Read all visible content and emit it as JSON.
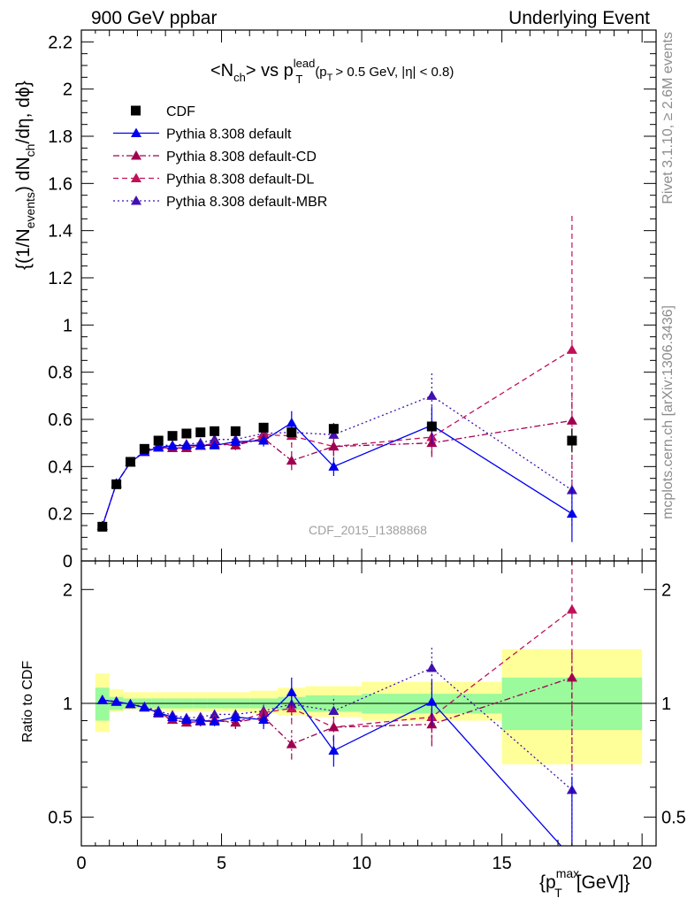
{
  "header": {
    "left": "900 GeV ppbar",
    "right": "Underlying Event"
  },
  "side_labels": {
    "rivet": "Rivet 3.1.10, ≥ 2.6M events",
    "mcplots": "mcplots.cern.ch [arXiv:1306.3436]"
  },
  "watermark": "CDF_2015_I1388868",
  "title_parts": {
    "a": "<N",
    "a_sub": "ch",
    "b": "> vs p",
    "b_sup": "lead",
    "b_sub": "T",
    "c": "(p",
    "c_sub": "T",
    "d": "> 0.5 GeV, |η| < 0.8)"
  },
  "ylabel_parts": {
    "a": "{(1/N",
    "a_sub": "events",
    "b": ") dN",
    "b_sub": "ch",
    "c": "/dη, dϕ}"
  },
  "xlabel_parts": {
    "a": "{p",
    "a_sub": "T",
    "a_sup": "max",
    "b": "[GeV]}"
  },
  "ratio_ylabel": "Ratio to CDF",
  "colors": {
    "data": "#000000",
    "default": "#0000ee",
    "cd": "#a00050",
    "dl": "#c0105a",
    "mbr": "#4010b0",
    "band_green": "#9bfa9b",
    "band_yellow": "#ffff99"
  },
  "chart_data": {
    "type": "scatter",
    "x_ticks": [
      0,
      5,
      10,
      15,
      20
    ],
    "xlim": [
      0,
      20.5
    ],
    "main": {
      "ylim": [
        0,
        2.25
      ],
      "y_ticks": [
        0,
        0.2,
        0.4,
        0.6,
        0.8,
        1,
        1.2,
        1.4,
        1.6,
        1.8,
        2,
        2.2
      ],
      "y_tick_labels": [
        "0",
        "0.2",
        "0.4",
        "0.6",
        "0.8",
        "1",
        "1.2",
        "1.4",
        "1.6",
        "1.8",
        "2",
        "2.2"
      ]
    },
    "ratio": {
      "ylim": [
        0.42,
        2.38
      ],
      "log": true,
      "y_ticks": [
        0.5,
        1,
        2
      ],
      "y_tick_labels": [
        "0.5",
        "1",
        "2"
      ]
    },
    "x": [
      0.75,
      1.25,
      1.75,
      2.25,
      2.75,
      3.25,
      3.75,
      4.25,
      4.75,
      5.5,
      6.5,
      7.5,
      9.0,
      12.5,
      17.5
    ],
    "x_edges": [
      [
        0.5,
        1.0
      ],
      [
        1.0,
        1.5
      ],
      [
        1.5,
        2.0
      ],
      [
        2.0,
        2.5
      ],
      [
        2.5,
        3.0
      ],
      [
        3.0,
        3.5
      ],
      [
        3.5,
        4.0
      ],
      [
        4.0,
        4.5
      ],
      [
        4.5,
        5.0
      ],
      [
        5.0,
        6.0
      ],
      [
        6.0,
        7.0
      ],
      [
        7.0,
        8.0
      ],
      [
        8.0,
        10.0
      ],
      [
        10.0,
        15.0
      ],
      [
        15.0,
        20.0
      ]
    ],
    "series": [
      {
        "name": "CDF",
        "key": "data",
        "style": "square",
        "y": [
          0.145,
          0.325,
          0.42,
          0.475,
          0.51,
          0.53,
          0.54,
          0.545,
          0.55,
          0.55,
          0.565,
          0.545,
          0.56,
          0.57,
          0.51
        ],
        "err": [
          0.005,
          0.005,
          0.005,
          0.005,
          0.005,
          0.005,
          0.005,
          0.005,
          0.005,
          0.005,
          0.01,
          0.01,
          0.015,
          0.02,
          0.05
        ]
      },
      {
        "name": "Pythia 8.308 default",
        "key": "default",
        "style": "solid",
        "y": [
          0.148,
          0.328,
          0.418,
          0.462,
          0.482,
          0.488,
          0.49,
          0.49,
          0.49,
          0.505,
          0.51,
          0.585,
          0.4,
          0.575,
          0.2
        ],
        "err": [
          0.005,
          0.005,
          0.008,
          0.008,
          0.01,
          0.01,
          0.01,
          0.012,
          0.015,
          0.02,
          0.025,
          0.05,
          0.04,
          0.08,
          0.12
        ],
        "ratio": [
          1.02,
          1.01,
          0.995,
          0.975,
          0.945,
          0.92,
          0.905,
          0.9,
          0.895,
          0.92,
          0.905,
          1.07,
          0.75,
          1.01,
          0.39
        ],
        "ratio_err": [
          0.01,
          0.01,
          0.015,
          0.015,
          0.02,
          0.02,
          0.02,
          0.025,
          0.025,
          0.035,
          0.05,
          0.1,
          0.07,
          0.14,
          0.25
        ]
      },
      {
        "name": "Pythia 8.308 default-CD",
        "key": "cd",
        "style": "dashdot",
        "y": [
          0.148,
          0.328,
          0.418,
          0.462,
          0.48,
          0.478,
          0.48,
          0.488,
          0.495,
          0.49,
          0.52,
          0.425,
          0.485,
          0.5,
          0.595
        ],
        "err": [
          0.005,
          0.005,
          0.008,
          0.008,
          0.01,
          0.01,
          0.01,
          0.012,
          0.015,
          0.02,
          0.025,
          0.04,
          0.04,
          0.06,
          0.12
        ],
        "ratio": [
          1.02,
          1.01,
          0.995,
          0.975,
          0.94,
          0.905,
          0.89,
          0.895,
          0.9,
          0.89,
          0.92,
          0.78,
          0.865,
          0.88,
          1.17
        ],
        "ratio_err": [
          0.01,
          0.01,
          0.015,
          0.015,
          0.02,
          0.02,
          0.02,
          0.025,
          0.025,
          0.035,
          0.05,
          0.07,
          0.07,
          0.11,
          0.22
        ]
      },
      {
        "name": "Pythia 8.308 default-DL",
        "key": "dl",
        "style": "dashed",
        "y": [
          0.148,
          0.328,
          0.418,
          0.462,
          0.482,
          0.478,
          0.478,
          0.488,
          0.498,
          0.49,
          0.535,
          0.53,
          0.485,
          0.525,
          0.895
        ],
        "err": [
          0.005,
          0.005,
          0.008,
          0.008,
          0.01,
          0.01,
          0.01,
          0.012,
          0.015,
          0.02,
          0.025,
          0.05,
          0.04,
          0.07,
          0.58
        ],
        "ratio": [
          1.02,
          1.01,
          0.995,
          0.975,
          0.945,
          0.905,
          0.89,
          0.895,
          0.905,
          0.89,
          0.945,
          0.97,
          0.865,
          0.92,
          1.77
        ],
        "ratio_err": [
          0.01,
          0.01,
          0.015,
          0.015,
          0.02,
          0.02,
          0.02,
          0.025,
          0.025,
          0.035,
          0.05,
          0.09,
          0.07,
          0.12,
          1.1
        ]
      },
      {
        "name": "Pythia 8.308 default-MBR",
        "key": "mbr",
        "style": "dotted",
        "y": [
          0.148,
          0.328,
          0.418,
          0.465,
          0.49,
          0.49,
          0.495,
          0.5,
          0.515,
          0.515,
          0.54,
          0.545,
          0.535,
          0.7,
          0.3
        ],
        "err": [
          0.005,
          0.005,
          0.008,
          0.008,
          0.01,
          0.01,
          0.01,
          0.012,
          0.015,
          0.02,
          0.025,
          0.05,
          0.05,
          0.1,
          0.15
        ],
        "ratio": [
          1.02,
          1.01,
          0.995,
          0.98,
          0.955,
          0.93,
          0.915,
          0.92,
          0.935,
          0.935,
          0.955,
          0.995,
          0.955,
          1.24,
          0.59
        ],
        "ratio_err": [
          0.01,
          0.01,
          0.015,
          0.015,
          0.02,
          0.02,
          0.02,
          0.025,
          0.025,
          0.035,
          0.05,
          0.09,
          0.09,
          0.18,
          0.3
        ]
      }
    ],
    "ratio_bands": {
      "green": [
        [
          0.9,
          1.1
        ],
        [
          0.96,
          1.04
        ],
        [
          0.97,
          1.03
        ],
        [
          0.97,
          1.03
        ],
        [
          0.97,
          1.03
        ],
        [
          0.97,
          1.03
        ],
        [
          0.97,
          1.03
        ],
        [
          0.97,
          1.03
        ],
        [
          0.97,
          1.03
        ],
        [
          0.97,
          1.03
        ],
        [
          0.97,
          1.03
        ],
        [
          0.96,
          1.04
        ],
        [
          0.95,
          1.05
        ],
        [
          0.94,
          1.06
        ],
        [
          0.85,
          1.17
        ]
      ],
      "yellow": [
        [
          0.84,
          1.2
        ],
        [
          0.95,
          1.09
        ],
        [
          0.96,
          1.07
        ],
        [
          0.96,
          1.07
        ],
        [
          0.96,
          1.07
        ],
        [
          0.95,
          1.07
        ],
        [
          0.95,
          1.07
        ],
        [
          0.95,
          1.07
        ],
        [
          0.95,
          1.07
        ],
        [
          0.95,
          1.07
        ],
        [
          0.94,
          1.08
        ],
        [
          0.93,
          1.1
        ],
        [
          0.92,
          1.11
        ],
        [
          0.9,
          1.14
        ],
        [
          0.69,
          1.39
        ]
      ]
    }
  }
}
